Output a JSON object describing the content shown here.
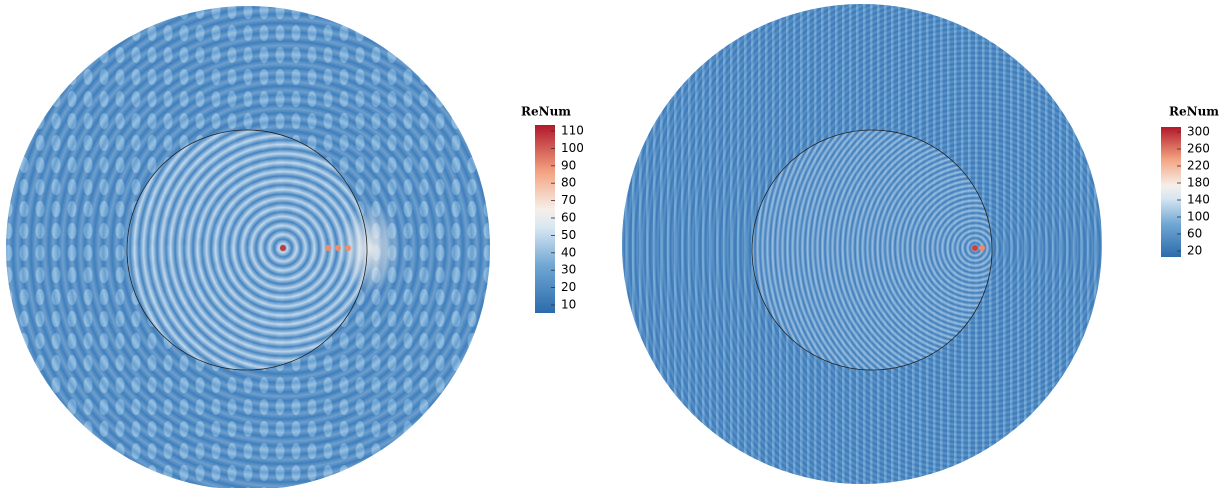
{
  "panels": [
    {
      "colorbar": {
        "title": "ReNum",
        "ticks": [
          110,
          100,
          90,
          80,
          70,
          60,
          50,
          40,
          30,
          20,
          10
        ]
      }
    },
    {
      "colorbar": {
        "title": "ReNum",
        "ticks": [
          300,
          260,
          220,
          180,
          140,
          100,
          60,
          20
        ]
      }
    }
  ]
}
